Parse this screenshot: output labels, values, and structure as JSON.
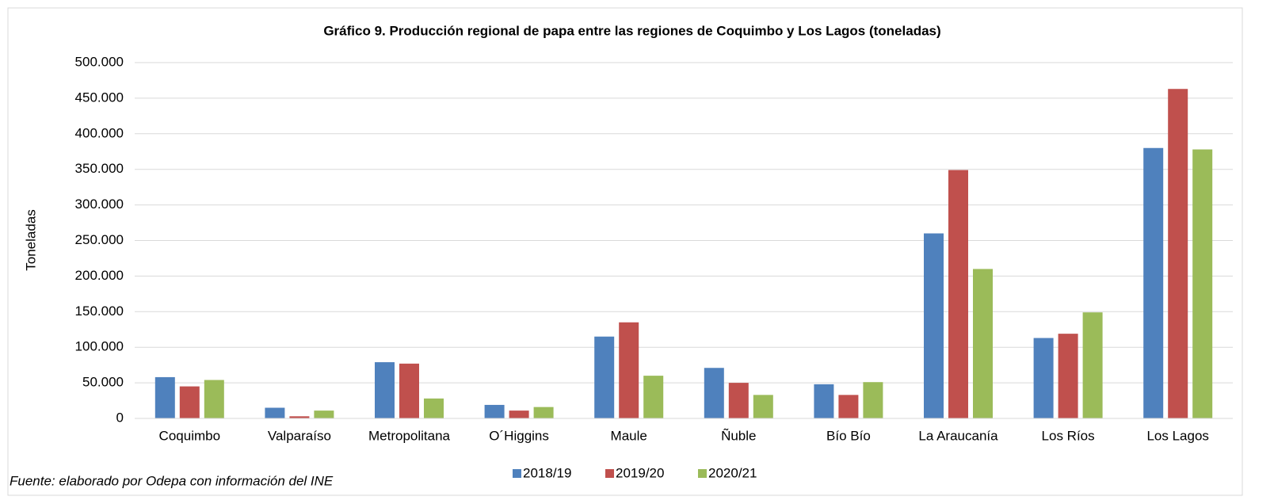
{
  "chart_data": {
    "type": "bar",
    "title": "Gráfico 9. Producción regional de papa entre las regiones de Coquimbo y Los Lagos (toneladas)",
    "y_label": "Toneladas",
    "source": "Fuente: elaborado por Odepa con información del INE",
    "categories": [
      "Coquimbo",
      "Valparaíso",
      "Metropolitana",
      "O´Higgins",
      "Maule",
      "Ñuble",
      "Bío Bío",
      "La Araucanía",
      "Los Ríos",
      "Los Lagos"
    ],
    "series": [
      {
        "name": "2018/19",
        "color": "#4f81bd",
        "values": [
          58000,
          15000,
          79000,
          19000,
          115000,
          71000,
          48000,
          260000,
          113000,
          380000
        ]
      },
      {
        "name": "2019/20",
        "color": "#c0504d",
        "values": [
          45000,
          3000,
          77000,
          11000,
          135000,
          50000,
          33000,
          349000,
          119000,
          463000
        ]
      },
      {
        "name": "2020/21",
        "color": "#9bbb59",
        "values": [
          54000,
          11000,
          28000,
          16000,
          60000,
          33000,
          51000,
          210000,
          149000,
          378000
        ]
      }
    ],
    "ylim": [
      0,
      500000
    ],
    "yticks": [
      0,
      {
        "value": 50000,
        "label": "50.000"
      },
      {
        "value": 100000,
        "label": "100.000"
      },
      {
        "value": 150000,
        "label": "150.000"
      },
      {
        "value": 200000,
        "label": "200.000"
      },
      {
        "value": 250000,
        "label": "250.000"
      },
      {
        "value": 300000,
        "label": "300.000"
      },
      {
        "value": 350000,
        "label": "350.000"
      },
      {
        "value": 400000,
        "label": "400.000"
      },
      {
        "value": 450000,
        "label": "450.000"
      },
      {
        "value": 500000,
        "label": "500.000"
      }
    ],
    "grid": true,
    "legend": "bottom"
  }
}
